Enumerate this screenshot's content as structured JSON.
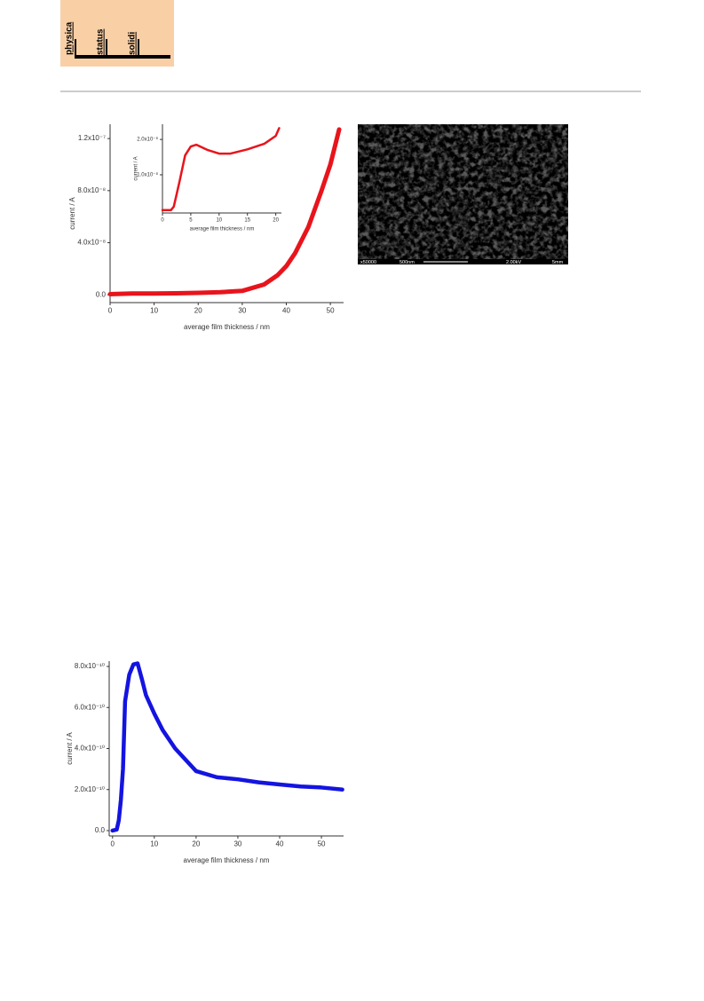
{
  "header": {
    "words": [
      "physica",
      "status",
      "solidi"
    ]
  },
  "sem_image": {
    "info_bar": [
      "x50000",
      "500nm",
      "2.00kV",
      "5mm"
    ]
  },
  "chart_data": [
    {
      "type": "line",
      "x_label": "average film thickness / nm",
      "y_label": "current / A",
      "xlim": [
        0,
        53
      ],
      "ylim": [
        -6e-09,
        1.31e-07
      ],
      "xticks": [
        0,
        10,
        20,
        30,
        40,
        50
      ],
      "yticks": [
        {
          "value": 0,
          "label": "0.0"
        },
        {
          "value": 4e-08,
          "label": "4.0x10⁻⁸"
        },
        {
          "value": 8e-08,
          "label": "8.0x10⁻⁸"
        },
        {
          "value": 1.2e-07,
          "label": "1.2x10⁻⁷"
        }
      ],
      "color": "#e8141c",
      "x": [
        0,
        5,
        10,
        15,
        20,
        25,
        30,
        35,
        38,
        40,
        42,
        45,
        48,
        50,
        52
      ],
      "values": [
        5e-10,
        1e-09,
        1e-09,
        1.2e-09,
        1.5e-09,
        2e-09,
        3e-09,
        8e-09,
        1.5e-08,
        2.2e-08,
        3.2e-08,
        5.2e-08,
        8e-08,
        1e-07,
        1.27e-07
      ]
    },
    {
      "type": "line",
      "x_label": "average film thickness / nm",
      "y_label": "current / A",
      "xlim": [
        0,
        21
      ],
      "ylim": [
        -8e-10,
        2.43e-08
      ],
      "xticks": [
        0,
        5,
        10,
        15,
        20
      ],
      "yticks": [
        {
          "value": 1e-08,
          "label": "1.0x10⁻⁸"
        },
        {
          "value": 2e-08,
          "label": "2.0x10⁻⁸"
        }
      ],
      "color": "#e8141c",
      "x": [
        0,
        1.5,
        2,
        3,
        4,
        5,
        6,
        8,
        10,
        12,
        15,
        18,
        20,
        20.6
      ],
      "values": [
        0,
        0,
        1e-09,
        8e-09,
        1.55e-08,
        1.8e-08,
        1.85e-08,
        1.7e-08,
        1.6e-08,
        1.6e-08,
        1.72e-08,
        1.88e-08,
        2.1e-08,
        2.32e-08
      ]
    },
    {
      "type": "line",
      "x_label": "average film thickness / nm",
      "y_label": "current / A",
      "xlim": [
        -0.8,
        55.3
      ],
      "ylim": [
        -2.6e-11,
        8.26e-10
      ],
      "xticks": [
        0,
        10,
        20,
        30,
        40,
        50
      ],
      "yticks": [
        {
          "value": 0,
          "label": "0.0"
        },
        {
          "value": 2e-10,
          "label": "2.0x10⁻¹⁰"
        },
        {
          "value": 4e-10,
          "label": "4.0x10⁻¹⁰"
        },
        {
          "value": 6e-10,
          "label": "6.0x10⁻¹⁰"
        },
        {
          "value": 8e-10,
          "label": "8.0x10⁻¹⁰"
        }
      ],
      "color": "#1414e0",
      "x": [
        0,
        1,
        1.5,
        2,
        2.5,
        3,
        4,
        5,
        6,
        7,
        8,
        10,
        12,
        15,
        20,
        25,
        30,
        35,
        40,
        45,
        50,
        55
      ],
      "values": [
        0,
        5e-12,
        5e-11,
        1.5e-10,
        3e-10,
        6.3e-10,
        7.6e-10,
        8.1e-10,
        8.15e-10,
        7.4e-10,
        6.6e-10,
        5.7e-10,
        4.9e-10,
        4e-10,
        2.9e-10,
        2.6e-10,
        2.5e-10,
        2.35e-10,
        2.25e-10,
        2.15e-10,
        2.1e-10,
        2e-10
      ]
    }
  ]
}
